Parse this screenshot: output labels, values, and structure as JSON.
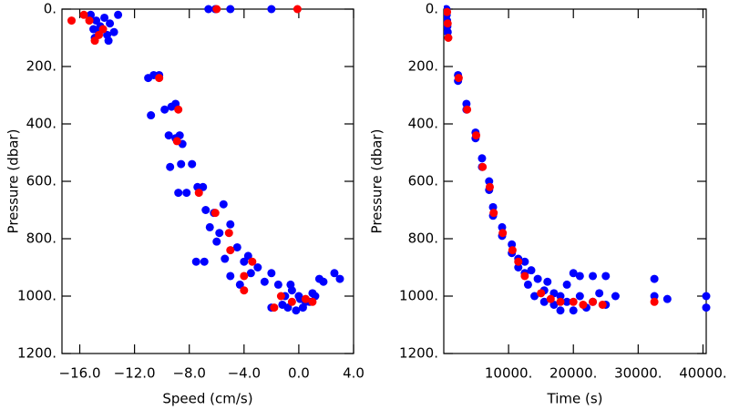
{
  "chart_data": [
    {
      "type": "scatter",
      "x_label": "Speed (cm/s)",
      "y_label": "Pressure (dbar)",
      "xlim": [
        -17.3,
        4.0
      ],
      "ylim": [
        1200,
        0
      ],
      "xticks": [
        {
          "value": -16,
          "label": "−16.0"
        },
        {
          "value": -12,
          "label": "−12.0"
        },
        {
          "value": -8,
          "label": "−8.0"
        },
        {
          "value": -4,
          "label": "−4.0"
        },
        {
          "value": 0,
          "label": "0.0"
        },
        {
          "value": 4,
          "label": "4.0"
        }
      ],
      "yticks": [
        {
          "value": 0,
          "label": "0."
        },
        {
          "value": 200,
          "label": "200."
        },
        {
          "value": 400,
          "label": "400."
        },
        {
          "value": 600,
          "label": "600."
        },
        {
          "value": 800,
          "label": "800."
        },
        {
          "value": 1000,
          "label": "1000."
        },
        {
          "value": 1200,
          "label": "1200."
        }
      ],
      "series": [
        {
          "color": "#0000ff",
          "x": [
            -15.2,
            -14.8,
            -14.5,
            -14.2,
            -13.8,
            -13.5,
            -14.9,
            -14.0,
            -13.2,
            -14.6,
            -13.9,
            -15.0,
            -6.6,
            -6.1,
            -5.0,
            -2.0,
            -11.0,
            -10.6,
            -10.2,
            -10.8,
            -9.8,
            -9.3,
            -9.0,
            -9.5,
            -9.0,
            -8.7,
            -8.5,
            -9.4,
            -8.6,
            -7.8,
            -8.8,
            -8.2,
            -7.4,
            -7.0,
            -6.8,
            -6.2,
            -5.5,
            -6.5,
            -5.8,
            -5.0,
            -7.5,
            -6.9,
            -6.0,
            -5.4,
            -4.5,
            -4.0,
            -3.7,
            -5.0,
            -4.3,
            -3.5,
            -3.0,
            -2.5,
            -2.0,
            -1.5,
            -1.0,
            -0.5,
            0,
            0.5,
            1.0,
            -0.8,
            -0.2,
            0.3,
            0.8,
            1.2,
            1.8,
            2.6,
            3.0,
            -1.2,
            -2.0,
            0.1,
            -0.6,
            1.5
          ],
          "y": [
            20,
            40,
            60,
            30,
            50,
            80,
            100,
            90,
            20,
            80,
            110,
            70,
            0,
            0,
            0,
            0,
            240,
            230,
            230,
            370,
            350,
            340,
            330,
            440,
            450,
            440,
            470,
            550,
            540,
            540,
            640,
            640,
            620,
            620,
            700,
            710,
            680,
            760,
            780,
            750,
            880,
            880,
            810,
            870,
            830,
            880,
            860,
            930,
            960,
            920,
            900,
            950,
            920,
            960,
            1000,
            980,
            1000,
            1020,
            990,
            1040,
            1050,
            1040,
            1020,
            1000,
            950,
            920,
            940,
            1030,
            1040,
            1010,
            960,
            940
          ]
        },
        {
          "color": "#ff0000",
          "x": [
            -16.6,
            -15.7,
            -15.3,
            -14.9,
            -14.6,
            -14.3,
            -6.0,
            -0.1,
            -10.2,
            -8.8,
            -8.9,
            -7.3,
            -6.1,
            -5.1,
            -5.0,
            -3.4,
            -4.0,
            -4.0,
            -1.8,
            -1.3,
            -0.5,
            0.5,
            1.0
          ],
          "y": [
            40,
            20,
            40,
            110,
            90,
            70,
            0,
            0,
            240,
            350,
            460,
            640,
            710,
            780,
            840,
            880,
            930,
            980,
            1040,
            1000,
            1020,
            1010,
            1020
          ]
        }
      ]
    },
    {
      "type": "scatter",
      "x_label": "Time (s)",
      "y_label": "Pressure (dbar)",
      "xlim": [
        0,
        40500
      ],
      "ylim": [
        1200,
        0
      ],
      "xticks": [
        {
          "value": 10000,
          "label": "10000."
        },
        {
          "value": 20000,
          "label": "20000."
        },
        {
          "value": 30000,
          "label": "30000."
        },
        {
          "value": 40000,
          "label": "40000."
        }
      ],
      "yticks": [
        {
          "value": 0,
          "label": "0."
        },
        {
          "value": 200,
          "label": "200."
        },
        {
          "value": 400,
          "label": "400."
        },
        {
          "value": 600,
          "label": "600."
        },
        {
          "value": 800,
          "label": "800."
        },
        {
          "value": 1000,
          "label": "1000."
        },
        {
          "value": 1200,
          "label": "1200."
        }
      ],
      "series": [
        {
          "color": "#0000ff",
          "x": [
            400,
            450,
            500,
            550,
            600,
            2200,
            2200,
            3500,
            3500,
            4900,
            4900,
            5900,
            5900,
            7000,
            7000,
            7600,
            7600,
            9000,
            9000,
            10500,
            10500,
            11500,
            11500,
            12500,
            12500,
            13000,
            13500,
            14000,
            14500,
            15500,
            15500,
            16000,
            17000,
            17000,
            18000,
            18000,
            19000,
            19000,
            20000,
            20000,
            21000,
            21000,
            22000,
            23000,
            23000,
            24000,
            25000,
            25000,
            26500,
            32500,
            32500,
            34500,
            40500,
            40500
          ],
          "y": [
            0,
            20,
            40,
            60,
            80,
            230,
            250,
            330,
            350,
            430,
            450,
            520,
            550,
            600,
            630,
            690,
            720,
            760,
            790,
            820,
            850,
            870,
            900,
            880,
            920,
            960,
            910,
            1000,
            940,
            980,
            1020,
            950,
            1030,
            990,
            1050,
            1000,
            1020,
            960,
            920,
            1050,
            1000,
            930,
            1040,
            1020,
            930,
            990,
            1030,
            930,
            1000,
            940,
            1000,
            1010,
            1000,
            1040
          ]
        },
        {
          "color": "#ff0000",
          "x": [
            500,
            600,
            700,
            2300,
            3600,
            5000,
            6000,
            7100,
            7700,
            9100,
            10600,
            11500,
            12500,
            15000,
            16500,
            18000,
            20000,
            21500,
            23000,
            24500,
            32500
          ],
          "y": [
            10,
            50,
            100,
            240,
            350,
            440,
            550,
            620,
            710,
            780,
            840,
            880,
            930,
            990,
            1010,
            1020,
            1020,
            1030,
            1020,
            1030,
            1020
          ]
        }
      ]
    }
  ]
}
